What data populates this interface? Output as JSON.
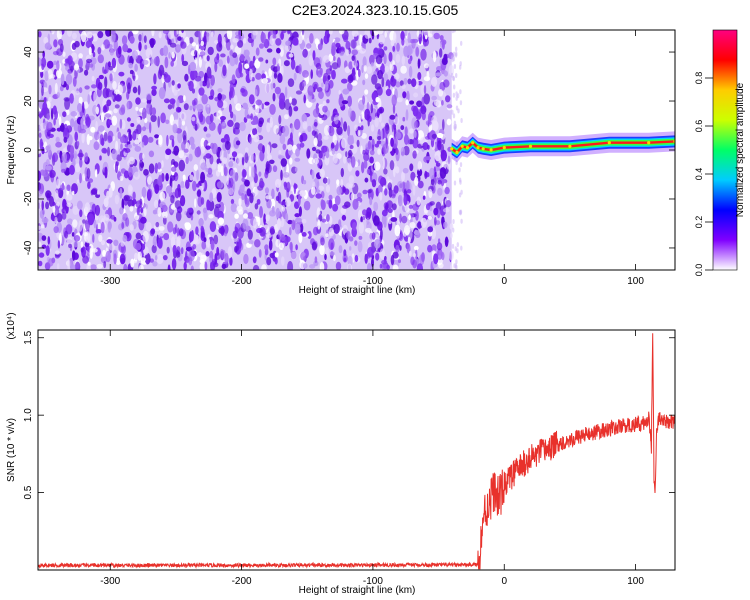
{
  "title": "C2E3.2024.323.10.15.G05",
  "colors": {
    "snr_line": "#e8312b",
    "noise_purple": "#6a12e6",
    "noise_light": "#d8c6f8",
    "ridge_core": "#ff1a1a"
  },
  "chart_data": [
    {
      "id": "spectrogram",
      "type": "heatmap",
      "xlabel": "Height of straight line (km)",
      "ylabel": "Frequency (Hz)",
      "xlim": [
        -355,
        130
      ],
      "ylim": [
        -49,
        49
      ],
      "x_ticks": [
        -300,
        -200,
        -100,
        0,
        100
      ],
      "y_ticks": [
        -40,
        -20,
        0,
        20,
        40
      ],
      "noise_region_x": [
        -355,
        -40
      ],
      "signal_region_x": [
        -40,
        130
      ],
      "ridge": [
        [
          -40,
          0.5
        ],
        [
          -36,
          -1.0
        ],
        [
          -32,
          1.5
        ],
        [
          -28,
          1.0
        ],
        [
          -24,
          3.0
        ],
        [
          -20,
          1.0
        ],
        [
          -16,
          0.5
        ],
        [
          -10,
          0.0
        ],
        [
          0,
          1.0
        ],
        [
          20,
          1.5
        ],
        [
          50,
          1.5
        ],
        [
          80,
          3.0
        ],
        [
          110,
          3.0
        ],
        [
          130,
          3.5
        ]
      ],
      "colorbar": {
        "label": "Normalized spectral amplitude",
        "range": [
          0.0,
          1.0
        ],
        "ticks": [
          0.0,
          0.2,
          0.4,
          0.6,
          0.8
        ],
        "tick_labels": [
          "0.0",
          "0.2",
          "0.4",
          "0.6",
          "0.8"
        ],
        "colormap": [
          "#ffffff",
          "#8000ff",
          "#0000ff",
          "#00ccff",
          "#00ff66",
          "#ccff00",
          "#ffcc00",
          "#ff0000",
          "#ff0080"
        ]
      }
    },
    {
      "id": "snr",
      "type": "line",
      "xlabel": "Height of straight line (km)",
      "ylabel": "SNR (10 * v/v)",
      "y_multiplier": "(x10⁴)",
      "xlim": [
        -355,
        130
      ],
      "ylim": [
        0,
        15500
      ],
      "x_ticks": [
        -300,
        -200,
        -100,
        0,
        100
      ],
      "y_ticks": [
        5000,
        10000,
        15000
      ],
      "y_tick_labels": [
        "0.5",
        "1.0",
        "1.5"
      ],
      "series": [
        {
          "points": [
            [
              -355,
              300
            ],
            [
              -300,
              300
            ],
            [
              -200,
              300
            ],
            [
              -100,
              320
            ],
            [
              -40,
              330
            ],
            [
              -20,
              350
            ],
            [
              -18,
              1500
            ],
            [
              -16,
              3500
            ],
            [
              -12,
              4200
            ],
            [
              -8,
              5200
            ],
            [
              -4,
              4600
            ],
            [
              0,
              5500
            ],
            [
              5,
              6000
            ],
            [
              10,
              6500
            ],
            [
              20,
              7200
            ],
            [
              30,
              7700
            ],
            [
              40,
              8100
            ],
            [
              50,
              8400
            ],
            [
              60,
              8700
            ],
            [
              70,
              8900
            ],
            [
              80,
              9100
            ],
            [
              90,
              9300
            ],
            [
              100,
              9400
            ],
            [
              108,
              9500
            ],
            [
              110,
              9800
            ],
            [
              112,
              8000
            ],
            [
              113,
              15500
            ],
            [
              114,
              6000
            ],
            [
              115,
              5300
            ],
            [
              116,
              9000
            ],
            [
              118,
              9800
            ],
            [
              120,
              9500
            ],
            [
              125,
              9600
            ],
            [
              130,
              9600
            ]
          ]
        }
      ]
    }
  ]
}
